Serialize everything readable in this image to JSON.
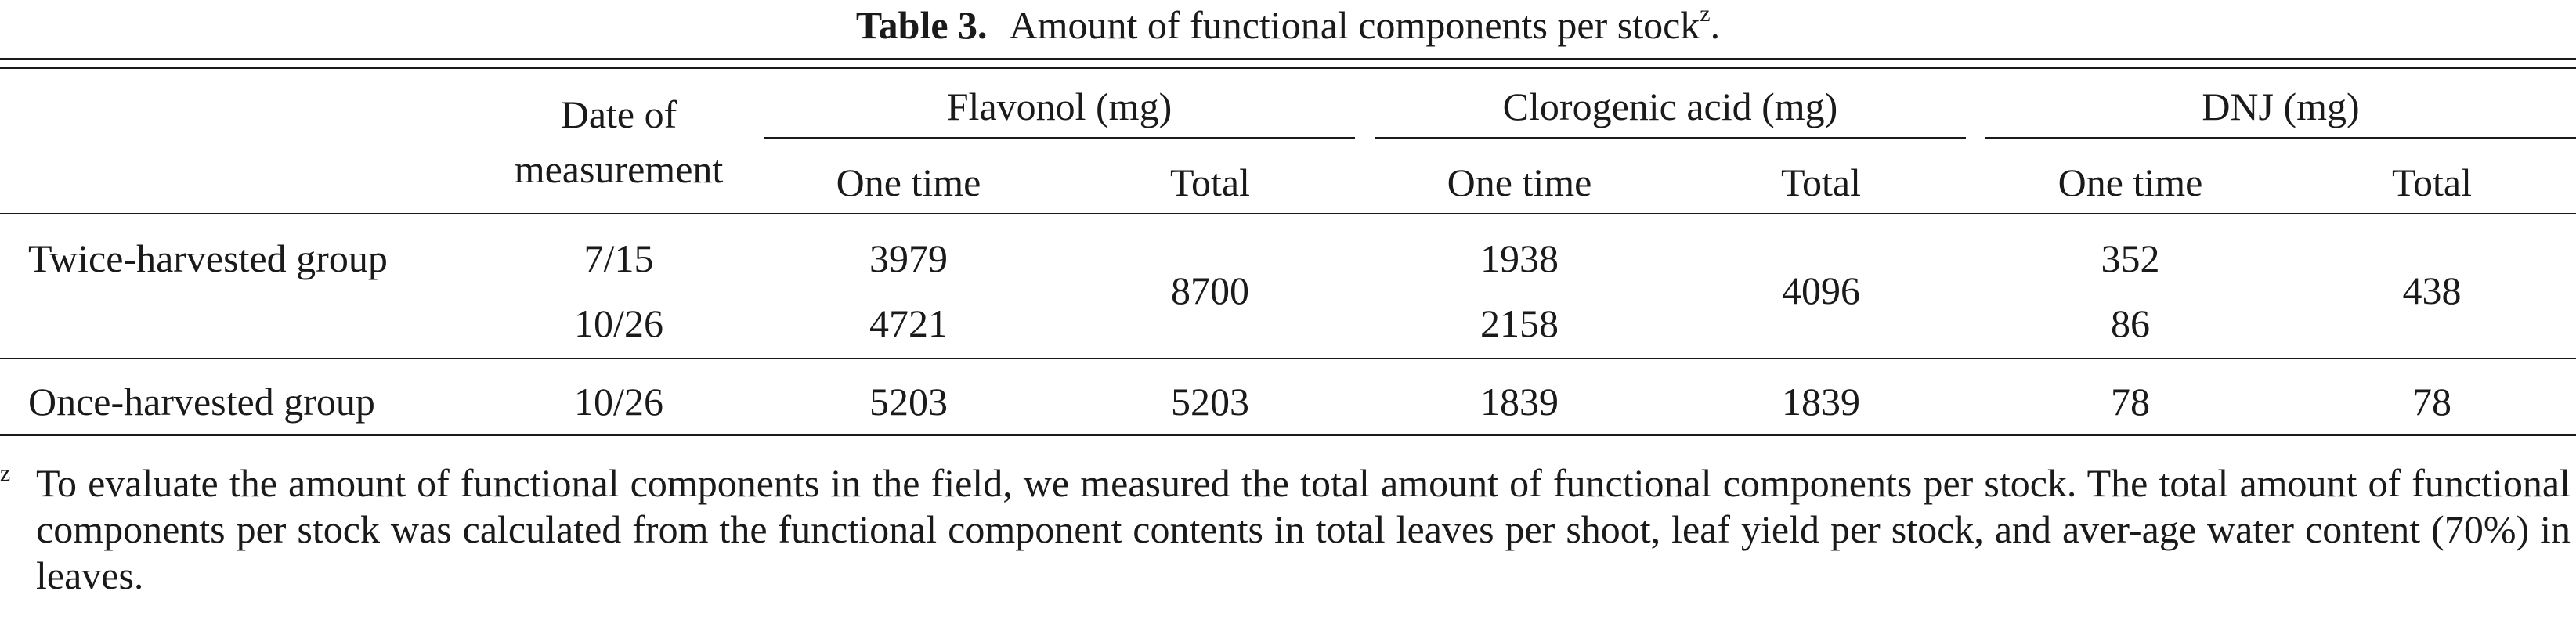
{
  "caption": {
    "label": "Table 3.",
    "text": "Amount of functional components per stock",
    "footnote_mark": "z",
    "end": "."
  },
  "table": {
    "date_header": [
      "Date of",
      "measurement"
    ],
    "groups": [
      "Flavonol (mg)",
      "Clorogenic acid (mg)",
      "DNJ (mg)"
    ],
    "subheaders": [
      "One time",
      "Total",
      "One time",
      "Total",
      "One time",
      "Total"
    ],
    "rows": [
      {
        "label": "Twice-harvested group",
        "dates": [
          "7/15",
          "10/26"
        ],
        "flavonol_one_time": [
          "3979",
          "4721"
        ],
        "flavonol_total": "8700",
        "clorogenic_one_time": [
          "1938",
          "2158"
        ],
        "clorogenic_total": "4096",
        "dnj_one_time": [
          "352",
          "86"
        ],
        "dnj_total": "438"
      },
      {
        "label": "Once-harvested group",
        "dates": [
          "10/26"
        ],
        "flavonol_one_time": [
          "5203"
        ],
        "flavonol_total": "5203",
        "clorogenic_one_time": [
          "1839"
        ],
        "clorogenic_total": "1839",
        "dnj_one_time": [
          "78"
        ],
        "dnj_total": "78"
      }
    ]
  },
  "footnote": {
    "mark": "z",
    "text": "To evaluate the amount of functional components in the field, we measured the total amount of functional components per stock. The total amount of functional components per stock was calculated from the functional component contents in total leaves per shoot, leaf yield per stock, and aver-age water content (70%) in leaves."
  }
}
